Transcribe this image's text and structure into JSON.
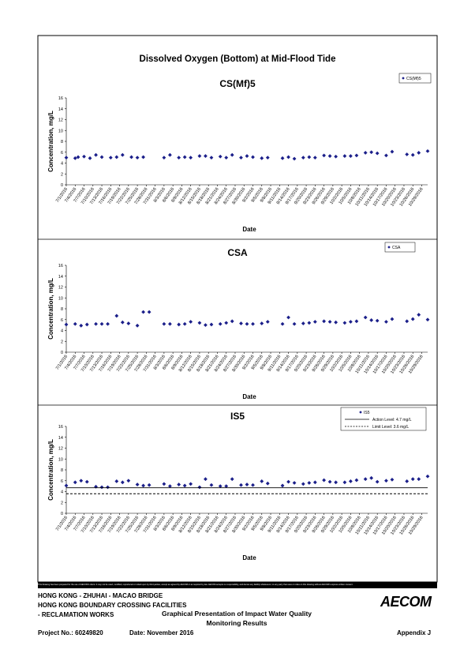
{
  "page": {
    "main_title": "Dissolved Oxygen (Bottom) at Mid-Flood Tide",
    "disclaimer": "This Drawing has been prepared for the use of AECOM's client. It may not be used, modified, reproduced or relied upon by third parties, except as agreed by AECOM or as required by law. AECOM accepts no responsibility, and denies any liability whatsoever, to any party that uses or relies on this drawing without AECOM's express written consent.",
    "footer": {
      "project_line1": "HONG KONG - ZHUHAI - MACAO BRIDGE",
      "project_line2": "HONG KONG BOUNDARY CROSSING FACILITIES",
      "project_line3": "- RECLAMATION WORKS",
      "drawing_title_line1": "Graphical Presentation of Impact Water Quality",
      "drawing_title_line2": "Monitoring Results",
      "project_no": "Project No.: 60249820",
      "date": "Date: November 2016",
      "appendix": "Appendix J",
      "logo": "AECOM"
    }
  },
  "x_tick_labels": [
    "7/1/2016",
    "7/4/2016",
    "7/7/2016",
    "7/10/2016",
    "7/13/2016",
    "7/16/2016",
    "7/19/2016",
    "7/22/2016",
    "7/25/2016",
    "7/28/2016",
    "7/31/2016",
    "8/3/2016",
    "8/6/2016",
    "8/9/2016",
    "8/12/2016",
    "8/15/2016",
    "8/18/2016",
    "8/21/2016",
    "8/24/2016",
    "8/27/2016",
    "8/30/2016",
    "9/2/2016",
    "9/5/2016",
    "9/8/2016",
    "9/11/2016",
    "9/14/2016",
    "9/17/2016",
    "9/20/2016",
    "9/23/2016",
    "9/26/2016",
    "9/29/2016",
    "10/2/2016",
    "10/5/2016",
    "10/8/2016",
    "10/11/2016",
    "10/14/2016",
    "10/17/2016",
    "10/20/2016",
    "10/23/2016",
    "10/26/2016",
    "10/29/2016"
  ],
  "chart_data": [
    {
      "type": "scatter",
      "title": "CS(Mf)5",
      "xlabel": "Date",
      "ylabel": "Concentration, mg/L",
      "xlim": [
        "7/1/2016",
        "10/31/2016"
      ],
      "ylim": [
        0,
        16
      ],
      "yticks": [
        0,
        2,
        4,
        6,
        8,
        10,
        12,
        14,
        16
      ],
      "legend_position": "top-right",
      "series": [
        {
          "name": "CS(Mf)5",
          "points": [
            [
              "7/1/2016",
              5.0
            ],
            [
              "7/4/2016",
              4.9
            ],
            [
              "7/5/2016",
              5.1
            ],
            [
              "7/7/2016",
              5.2
            ],
            [
              "7/9/2016",
              4.9
            ],
            [
              "7/11/2016",
              5.5
            ],
            [
              "7/13/2016",
              5.1
            ],
            [
              "7/16/2016",
              5.0
            ],
            [
              "7/18/2016",
              5.1
            ],
            [
              "7/20/2016",
              5.5
            ],
            [
              "7/23/2016",
              5.1
            ],
            [
              "7/25/2016",
              5.0
            ],
            [
              "7/27/2016",
              5.1
            ],
            [
              "8/3/2016",
              5.0
            ],
            [
              "8/5/2016",
              5.5
            ],
            [
              "8/8/2016",
              5.0
            ],
            [
              "8/10/2016",
              5.1
            ],
            [
              "8/12/2016",
              5.0
            ],
            [
              "8/15/2016",
              5.3
            ],
            [
              "8/17/2016",
              5.3
            ],
            [
              "8/19/2016",
              5.0
            ],
            [
              "8/22/2016",
              5.2
            ],
            [
              "8/24/2016",
              5.0
            ],
            [
              "8/26/2016",
              5.5
            ],
            [
              "8/29/2016",
              5.0
            ],
            [
              "8/31/2016",
              5.3
            ],
            [
              "9/2/2016",
              5.1
            ],
            [
              "9/5/2016",
              4.9
            ],
            [
              "9/7/2016",
              5.0
            ],
            [
              "9/12/2016",
              4.9
            ],
            [
              "9/14/2016",
              5.1
            ],
            [
              "9/16/2016",
              4.8
            ],
            [
              "9/19/2016",
              5.0
            ],
            [
              "9/21/2016",
              5.1
            ],
            [
              "9/23/2016",
              5.0
            ],
            [
              "9/26/2016",
              5.4
            ],
            [
              "9/28/2016",
              5.3
            ],
            [
              "9/30/2016",
              5.2
            ],
            [
              "10/3/2016",
              5.3
            ],
            [
              "10/5/2016",
              5.3
            ],
            [
              "10/7/2016",
              5.4
            ],
            [
              "10/10/2016",
              5.9
            ],
            [
              "10/12/2016",
              6.0
            ],
            [
              "10/14/2016",
              5.8
            ],
            [
              "10/17/2016",
              5.4
            ],
            [
              "10/19/2016",
              6.1
            ],
            [
              "10/24/2016",
              5.6
            ],
            [
              "10/26/2016",
              5.5
            ],
            [
              "10/28/2016",
              5.9
            ],
            [
              "10/31/2016",
              6.2
            ]
          ]
        }
      ]
    },
    {
      "type": "scatter",
      "title": "CSA",
      "xlabel": "Date",
      "ylabel": "Concentration, mg/L",
      "xlim": [
        "7/1/2016",
        "10/31/2016"
      ],
      "ylim": [
        0,
        16
      ],
      "yticks": [
        0,
        2,
        4,
        6,
        8,
        10,
        12,
        14,
        16
      ],
      "legend_position": "top-right",
      "series": [
        {
          "name": "CSA",
          "points": [
            [
              "7/1/2016",
              5.1
            ],
            [
              "7/4/2016",
              5.2
            ],
            [
              "7/6/2016",
              4.9
            ],
            [
              "7/8/2016",
              5.1
            ],
            [
              "7/11/2016",
              5.2
            ],
            [
              "7/13/2016",
              5.2
            ],
            [
              "7/15/2016",
              5.2
            ],
            [
              "7/18/2016",
              6.7
            ],
            [
              "7/20/2016",
              5.5
            ],
            [
              "7/22/2016",
              5.3
            ],
            [
              "7/25/2016",
              4.9
            ],
            [
              "7/27/2016",
              7.4
            ],
            [
              "7/29/2016",
              7.4
            ],
            [
              "8/3/2016",
              5.2
            ],
            [
              "8/5/2016",
              5.2
            ],
            [
              "8/8/2016",
              5.1
            ],
            [
              "8/10/2016",
              5.2
            ],
            [
              "8/12/2016",
              5.6
            ],
            [
              "8/15/2016",
              5.4
            ],
            [
              "8/17/2016",
              5.0
            ],
            [
              "8/19/2016",
              5.1
            ],
            [
              "8/22/2016",
              5.2
            ],
            [
              "8/24/2016",
              5.4
            ],
            [
              "8/26/2016",
              5.7
            ],
            [
              "8/29/2016",
              5.3
            ],
            [
              "8/31/2016",
              5.2
            ],
            [
              "9/2/2016",
              5.2
            ],
            [
              "9/5/2016",
              5.3
            ],
            [
              "9/7/2016",
              5.6
            ],
            [
              "9/12/2016",
              5.2
            ],
            [
              "9/14/2016",
              6.4
            ],
            [
              "9/16/2016",
              5.2
            ],
            [
              "9/19/2016",
              5.3
            ],
            [
              "9/21/2016",
              5.4
            ],
            [
              "9/23/2016",
              5.6
            ],
            [
              "9/26/2016",
              5.7
            ],
            [
              "9/28/2016",
              5.6
            ],
            [
              "9/30/2016",
              5.5
            ],
            [
              "10/3/2016",
              5.4
            ],
            [
              "10/5/2016",
              5.6
            ],
            [
              "10/7/2016",
              5.7
            ],
            [
              "10/10/2016",
              6.4
            ],
            [
              "10/12/2016",
              5.9
            ],
            [
              "10/14/2016",
              5.8
            ],
            [
              "10/17/2016",
              5.6
            ],
            [
              "10/19/2016",
              6.1
            ],
            [
              "10/24/2016",
              5.7
            ],
            [
              "10/26/2016",
              6.1
            ],
            [
              "10/28/2016",
              6.9
            ],
            [
              "10/31/2016",
              6.0
            ]
          ]
        }
      ]
    },
    {
      "type": "scatter",
      "title": "IS5",
      "xlabel": "Date",
      "ylabel": "Concentration, mg/L",
      "xlim": [
        "7/1/2016",
        "10/31/2016"
      ],
      "ylim": [
        0,
        16
      ],
      "yticks": [
        0,
        2,
        4,
        6,
        8,
        10,
        12,
        14,
        16
      ],
      "legend_position": "top-right",
      "series": [
        {
          "name": "IS5",
          "points": [
            [
              "7/1/2016",
              5.1
            ],
            [
              "7/4/2016",
              5.7
            ],
            [
              "7/6/2016",
              6.0
            ],
            [
              "7/8/2016",
              5.8
            ],
            [
              "7/11/2016",
              4.9
            ],
            [
              "7/13/2016",
              4.8
            ],
            [
              "7/15/2016",
              4.8
            ],
            [
              "7/18/2016",
              5.9
            ],
            [
              "7/20/2016",
              5.7
            ],
            [
              "7/22/2016",
              6.0
            ],
            [
              "7/25/2016",
              5.3
            ],
            [
              "7/27/2016",
              5.1
            ],
            [
              "7/29/2016",
              5.2
            ],
            [
              "8/3/2016",
              5.4
            ],
            [
              "8/5/2016",
              5.0
            ],
            [
              "8/8/2016",
              5.3
            ],
            [
              "8/10/2016",
              5.1
            ],
            [
              "8/12/2016",
              5.4
            ],
            [
              "8/15/2016",
              4.8
            ],
            [
              "8/17/2016",
              6.3
            ],
            [
              "8/19/2016",
              5.2
            ],
            [
              "8/22/2016",
              5.0
            ],
            [
              "8/24/2016",
              5.0
            ],
            [
              "8/26/2016",
              6.3
            ],
            [
              "8/29/2016",
              5.2
            ],
            [
              "8/31/2016",
              5.3
            ],
            [
              "9/2/2016",
              5.2
            ],
            [
              "9/5/2016",
              5.9
            ],
            [
              "9/7/2016",
              5.5
            ],
            [
              "9/12/2016",
              5.1
            ],
            [
              "9/14/2016",
              5.8
            ],
            [
              "9/16/2016",
              5.6
            ],
            [
              "9/19/2016",
              5.4
            ],
            [
              "9/21/2016",
              5.6
            ],
            [
              "9/23/2016",
              5.7
            ],
            [
              "9/26/2016",
              6.1
            ],
            [
              "9/28/2016",
              5.8
            ],
            [
              "9/30/2016",
              5.7
            ],
            [
              "10/3/2016",
              5.7
            ],
            [
              "10/5/2016",
              5.9
            ],
            [
              "10/7/2016",
              6.1
            ],
            [
              "10/10/2016",
              6.3
            ],
            [
              "10/12/2016",
              6.5
            ],
            [
              "10/14/2016",
              5.8
            ],
            [
              "10/17/2016",
              6.0
            ],
            [
              "10/19/2016",
              6.2
            ],
            [
              "10/24/2016",
              5.9
            ],
            [
              "10/26/2016",
              6.3
            ],
            [
              "10/28/2016",
              6.3
            ],
            [
              "10/31/2016",
              6.8
            ]
          ]
        },
        {
          "name": "Action Level: 4.7 mg/L",
          "value": 4.7,
          "style": "solid"
        },
        {
          "name": "Limit Level: 3.6 mg/L",
          "value": 3.6,
          "style": "dashed"
        }
      ]
    }
  ],
  "colors": {
    "marker": "#1b1f8a",
    "line": "#000000"
  }
}
